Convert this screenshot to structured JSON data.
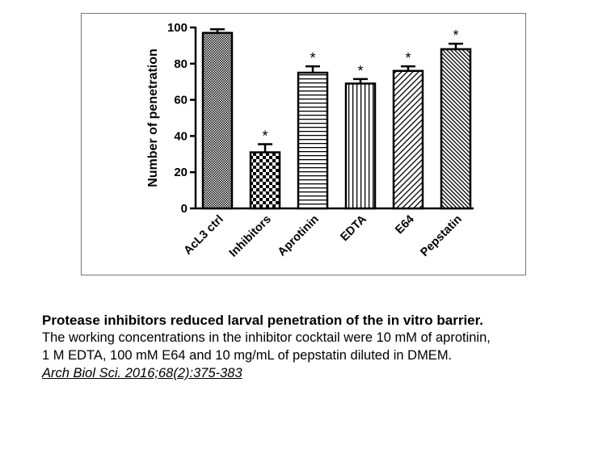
{
  "chart_data": {
    "type": "bar",
    "ylabel": "Number of penetration",
    "xlabel": "",
    "ylim": [
      0,
      100
    ],
    "yticks": [
      0,
      20,
      40,
      60,
      80,
      100
    ],
    "categories": [
      "AcL3 ctrl",
      "Inhibitors",
      "Aprotinin",
      "EDTA",
      "E64",
      "Pepstatin"
    ],
    "values": [
      97,
      31,
      75,
      69,
      76,
      88
    ],
    "errors": [
      2,
      4.5,
      3.5,
      2.5,
      2.5,
      3
    ],
    "significance": [
      "",
      "*",
      "*",
      "*",
      "*",
      "*"
    ],
    "bar_patterns": [
      "fine-dots",
      "checker",
      "horizontal-lines",
      "vertical-lines",
      "diagonal-up",
      "diagonal-dense"
    ],
    "colors": {
      "bar_stroke": "#000000",
      "bar_fill": "#ffffff"
    }
  },
  "caption": {
    "title": "Protease inhibitors reduced larval penetration of the in vitro barrier.",
    "line1": "The working concentrations in the inhibitor cocktail were 10 mM of aprotinin,",
    "line2": "1 M EDTA, 100 mM E64 and 10 mg/mL of pepstatin diluted in DMEM.",
    "citation": "Arch Biol Sci. 2016;68(2):375-383"
  }
}
